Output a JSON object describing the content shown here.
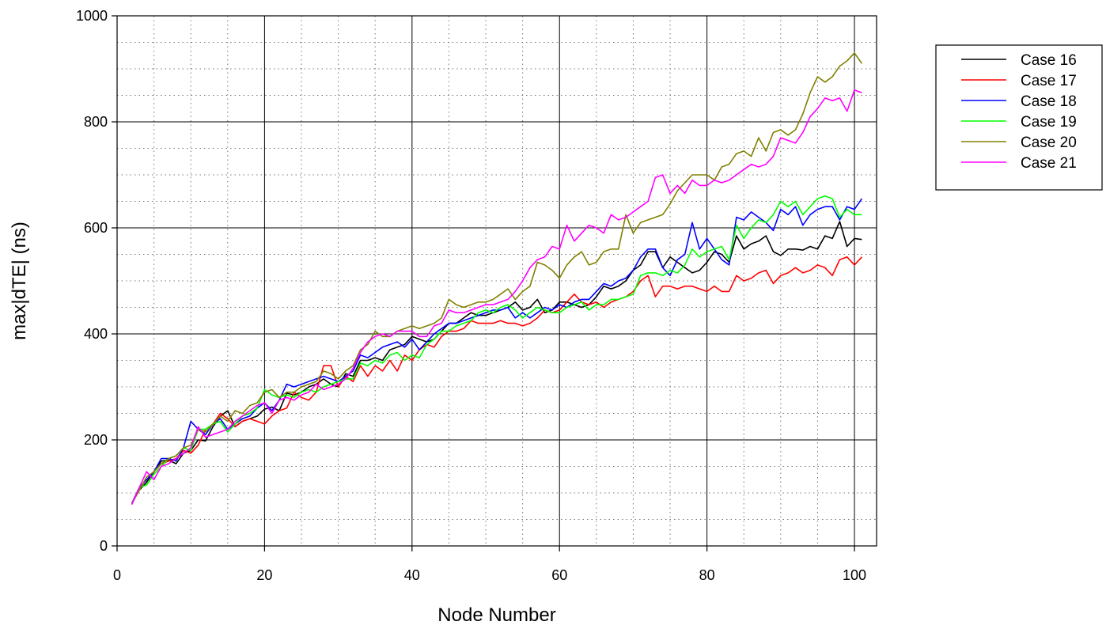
{
  "chart_data": {
    "type": "line",
    "xlabel": "Node Number",
    "ylabel": "max|dTE| (ns)",
    "xlim": [
      0,
      103
    ],
    "ylim": [
      0,
      1000
    ],
    "x_ticks": [
      0,
      20,
      40,
      60,
      80,
      100
    ],
    "y_ticks": [
      0,
      200,
      400,
      600,
      800,
      1000
    ],
    "x_minor_step": 5,
    "y_minor_step": 50,
    "grid": true,
    "legend_position": "top-right",
    "x": [
      2,
      3,
      4,
      5,
      6,
      7,
      8,
      9,
      10,
      11,
      12,
      13,
      14,
      15,
      16,
      17,
      18,
      19,
      20,
      21,
      22,
      23,
      24,
      25,
      26,
      27,
      28,
      29,
      30,
      31,
      32,
      33,
      34,
      35,
      36,
      37,
      38,
      39,
      40,
      41,
      42,
      43,
      44,
      45,
      46,
      47,
      48,
      49,
      50,
      51,
      52,
      53,
      54,
      55,
      56,
      57,
      58,
      59,
      60,
      61,
      62,
      63,
      64,
      65,
      66,
      67,
      68,
      69,
      70,
      71,
      72,
      73,
      74,
      75,
      76,
      77,
      78,
      79,
      80,
      81,
      82,
      83,
      84,
      85,
      86,
      87,
      88,
      89,
      90,
      91,
      92,
      93,
      94,
      95,
      96,
      97,
      98,
      99,
      100,
      101
    ],
    "series": [
      {
        "name": "Case 16",
        "color": "#000000",
        "values": [
          80,
          105,
          120,
          140,
          160,
          162,
          155,
          175,
          180,
          200,
          198,
          225,
          245,
          255,
          225,
          235,
          240,
          245,
          258,
          262,
          255,
          288,
          285,
          290,
          300,
          305,
          315,
          305,
          300,
          325,
          320,
          350,
          350,
          355,
          350,
          370,
          375,
          380,
          395,
          390,
          385,
          390,
          405,
          420,
          420,
          430,
          440,
          435,
          435,
          440,
          445,
          450,
          460,
          445,
          450,
          465,
          440,
          445,
          460,
          460,
          455,
          450,
          455,
          470,
          490,
          485,
          490,
          500,
          520,
          530,
          555,
          555,
          525,
          545,
          535,
          525,
          515,
          520,
          535,
          555,
          550,
          535,
          585,
          560,
          570,
          575,
          585,
          555,
          548,
          560,
          560,
          558,
          565,
          560,
          585,
          580,
          612,
          565,
          580,
          578
        ]
      },
      {
        "name": "Case 17",
        "color": "#ff0000",
        "values": [
          80,
          110,
          125,
          140,
          155,
          160,
          165,
          180,
          175,
          190,
          220,
          230,
          250,
          240,
          225,
          235,
          240,
          235,
          230,
          245,
          255,
          260,
          290,
          280,
          275,
          290,
          340,
          340,
          300,
          320,
          310,
          340,
          320,
          340,
          330,
          350,
          330,
          360,
          350,
          370,
          380,
          375,
          395,
          405,
          405,
          410,
          425,
          420,
          420,
          420,
          425,
          420,
          420,
          415,
          420,
          430,
          445,
          440,
          445,
          460,
          475,
          460,
          455,
          460,
          450,
          460,
          465,
          470,
          480,
          500,
          510,
          470,
          490,
          490,
          485,
          490,
          490,
          485,
          480,
          490,
          480,
          480,
          510,
          500,
          505,
          515,
          520,
          495,
          510,
          515,
          525,
          515,
          520,
          530,
          525,
          510,
          540,
          545,
          530,
          545
        ]
      },
      {
        "name": "Case 18",
        "color": "#0000ff",
        "values": [
          80,
          110,
          125,
          140,
          165,
          165,
          160,
          185,
          235,
          220,
          210,
          230,
          240,
          220,
          230,
          240,
          245,
          260,
          270,
          255,
          275,
          305,
          300,
          305,
          310,
          315,
          320,
          315,
          310,
          320,
          330,
          360,
          355,
          365,
          375,
          380,
          385,
          375,
          390,
          370,
          385,
          400,
          410,
          420,
          420,
          425,
          430,
          435,
          440,
          445,
          445,
          450,
          430,
          440,
          430,
          440,
          450,
          445,
          455,
          450,
          460,
          465,
          465,
          480,
          495,
          490,
          500,
          505,
          520,
          545,
          560,
          560,
          525,
          510,
          540,
          550,
          610,
          560,
          580,
          560,
          540,
          530,
          620,
          615,
          630,
          620,
          610,
          595,
          635,
          625,
          640,
          605,
          625,
          635,
          640,
          640,
          615,
          640,
          635,
          655
        ]
      },
      {
        "name": "Case 19",
        "color": "#00ff00",
        "values": [
          78,
          110,
          115,
          135,
          150,
          165,
          170,
          185,
          180,
          220,
          220,
          230,
          235,
          215,
          230,
          245,
          250,
          260,
          295,
          285,
          280,
          285,
          280,
          290,
          295,
          290,
          300,
          305,
          310,
          315,
          315,
          345,
          340,
          350,
          345,
          360,
          365,
          350,
          360,
          355,
          380,
          390,
          405,
          405,
          415,
          420,
          425,
          440,
          445,
          440,
          450,
          455,
          445,
          430,
          440,
          450,
          445,
          440,
          440,
          450,
          455,
          460,
          445,
          455,
          455,
          465,
          465,
          470,
          475,
          510,
          515,
          515,
          510,
          520,
          515,
          530,
          560,
          545,
          555,
          560,
          565,
          540,
          605,
          580,
          600,
          615,
          610,
          625,
          650,
          640,
          650,
          625,
          640,
          655,
          660,
          655,
          620,
          635,
          625,
          625
        ]
      },
      {
        "name": "Case 20",
        "color": "#808000",
        "values": [
          80,
          105,
          130,
          140,
          155,
          165,
          170,
          185,
          190,
          220,
          215,
          230,
          245,
          235,
          255,
          250,
          265,
          270,
          290,
          295,
          280,
          290,
          290,
          300,
          305,
          310,
          330,
          325,
          315,
          330,
          340,
          370,
          380,
          405,
          395,
          395,
          405,
          410,
          415,
          410,
          415,
          420,
          430,
          465,
          455,
          450,
          455,
          460,
          460,
          465,
          475,
          485,
          465,
          480,
          490,
          535,
          530,
          520,
          505,
          530,
          545,
          555,
          530,
          535,
          555,
          560,
          560,
          625,
          590,
          610,
          615,
          620,
          625,
          645,
          670,
          685,
          700,
          700,
          700,
          690,
          715,
          720,
          740,
          745,
          735,
          770,
          745,
          780,
          785,
          775,
          785,
          815,
          855,
          885,
          875,
          885,
          905,
          915,
          930,
          910
        ]
      },
      {
        "name": "Case 21",
        "color": "#ff00ff",
        "values": [
          78,
          110,
          140,
          125,
          150,
          155,
          165,
          175,
          185,
          225,
          205,
          210,
          215,
          220,
          235,
          245,
          255,
          265,
          270,
          250,
          275,
          280,
          275,
          285,
          290,
          305,
          295,
          300,
          305,
          315,
          335,
          365,
          385,
          395,
          400,
          395,
          405,
          405,
          405,
          395,
          395,
          415,
          420,
          445,
          440,
          440,
          445,
          450,
          455,
          455,
          460,
          465,
          480,
          500,
          525,
          540,
          545,
          565,
          560,
          605,
          575,
          590,
          605,
          600,
          590,
          625,
          615,
          620,
          630,
          640,
          650,
          695,
          700,
          665,
          680,
          665,
          690,
          680,
          680,
          690,
          685,
          690,
          700,
          710,
          720,
          715,
          720,
          735,
          770,
          765,
          760,
          780,
          810,
          825,
          845,
          840,
          845,
          820,
          860,
          855
        ]
      }
    ]
  }
}
